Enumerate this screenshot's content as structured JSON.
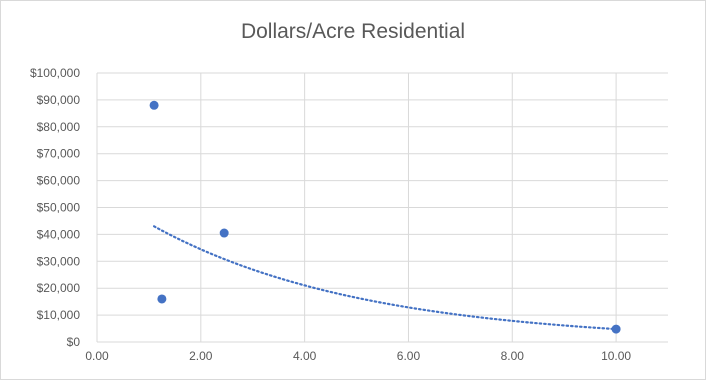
{
  "chart_data": {
    "type": "scatter",
    "title": "Dollars/Acre Residential",
    "xlabel": "",
    "ylabel": "",
    "xlim": [
      0,
      11
    ],
    "ylim": [
      0,
      100000
    ],
    "x_ticks": [
      0,
      2,
      4,
      6,
      8,
      10
    ],
    "x_tick_labels": [
      "0.00",
      "2.00",
      "4.00",
      "6.00",
      "8.00",
      "10.00"
    ],
    "y_ticks": [
      0,
      10000,
      20000,
      30000,
      40000,
      50000,
      60000,
      70000,
      80000,
      90000,
      100000
    ],
    "y_tick_labels": [
      "$0",
      "$10,000",
      "$20,000",
      "$30,000",
      "$40,000",
      "$50,000",
      "$60,000",
      "$70,000",
      "$80,000",
      "$90,000",
      "$100,000"
    ],
    "grid": "both",
    "points": [
      {
        "x": 1.1,
        "y": 88000
      },
      {
        "x": 1.25,
        "y": 16000
      },
      {
        "x": 2.45,
        "y": 40500
      },
      {
        "x": 10.0,
        "y": 4800
      }
    ],
    "trendline": {
      "type": "exponential",
      "x_range": [
        1.1,
        10.0
      ],
      "y_at_start": 43000,
      "y_at_end": 4800
    },
    "colors": {
      "marker": "#4472c4",
      "trendline": "#4472c4",
      "grid": "#d9d9d9",
      "text": "#595959"
    }
  }
}
